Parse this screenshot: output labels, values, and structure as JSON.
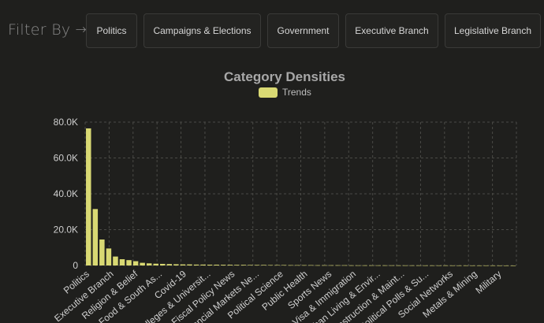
{
  "filter": {
    "label": "Filter By",
    "arrow": "→",
    "chips": [
      "Politics",
      "Campaigns & Elections",
      "Government",
      "Executive Branch",
      "Legislative Branch"
    ]
  },
  "colors": {
    "bar": "#d9d973",
    "grid": "#4a4a46",
    "axis_text": "#cfcfcf"
  },
  "chart_data": {
    "type": "bar",
    "title": "Category Densities",
    "legend": [
      "Trends"
    ],
    "legend_placement": "top-center",
    "ylim": [
      0,
      80000
    ],
    "y_ticks": [
      "0",
      "20.0K",
      "40.0K",
      "60.0K",
      "80.0K"
    ],
    "grid": true,
    "x_tick_labels": [
      "Politics",
      "Executive Branch",
      "Religion & Belief",
      "Food & South As...",
      "Covid-19",
      "Colleges & Universit...",
      "Fiscal Policy News",
      "Financial Markets Ne...",
      "Political Science",
      "Public Health",
      "Sports News",
      "Visa & Immigration",
      "Urban Living & Envir...",
      "Construction & Maint...",
      "Political Polls & Su...",
      "Social Networks",
      "Metals & Mining",
      "Military"
    ],
    "series": [
      {
        "name": "Trends",
        "values": [
          76500,
          31500,
          14500,
          9500,
          5000,
          3500,
          3000,
          2400,
          1500,
          1200,
          1000,
          900,
          800,
          700,
          600,
          600,
          500,
          500,
          450,
          450,
          400,
          400,
          350,
          350,
          300,
          300,
          300,
          250,
          250,
          250,
          200,
          200,
          200,
          200,
          150,
          150,
          150,
          150,
          150,
          100,
          100,
          100,
          100,
          100,
          100,
          100,
          80,
          80,
          80,
          80,
          60,
          60,
          60,
          60,
          50,
          50,
          50,
          40,
          40,
          40,
          30,
          30,
          20,
          10
        ]
      }
    ]
  }
}
